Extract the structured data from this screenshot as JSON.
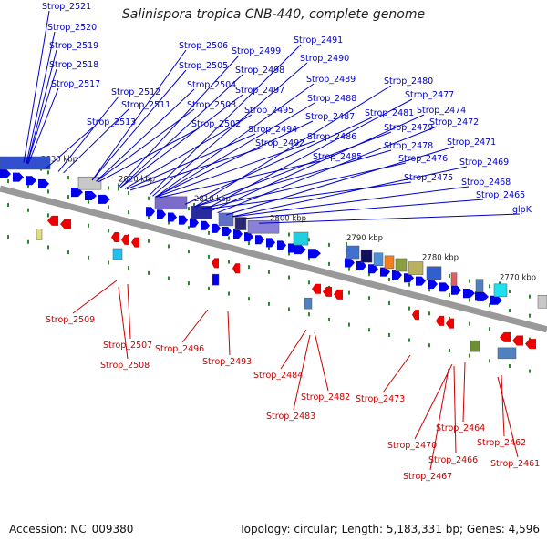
{
  "title": "Salinispora tropica CNB-440, complete genome",
  "footer": {
    "accession": "Accession: NC_009380",
    "topology": "Topology: circular; Length: 5,183,331 bp; Genes: 4,596"
  },
  "colors": {
    "forward_label": "#0000cc",
    "reverse_label": "#cc0000",
    "forward_feature": "#0000ee",
    "reverse_feature": "#ee0000",
    "backbone": "#999999",
    "tick": "#2a8a2a"
  },
  "ticks": [
    "2830 kbp",
    "2820 kbp",
    "2810 kbp",
    "2800 kbp",
    "2790 kbp",
    "2780 kbp",
    "2770 kbp"
  ],
  "forward_labels": [
    "Strop_2521",
    "Strop_2520",
    "Strop_2519",
    "Strop_2518",
    "Strop_2517",
    "Strop_2513",
    "Strop_2512",
    "Strop_2511",
    "Strop_2506",
    "Strop_2505",
    "Strop_2504",
    "Strop_2503",
    "Strop_2502",
    "Strop_2499",
    "Strop_2498",
    "Strop_2497",
    "Strop_2495",
    "Strop_2494",
    "Strop_2492",
    "Strop_2491",
    "Strop_2490",
    "Strop_2489",
    "Strop_2488",
    "Strop_2487",
    "Strop_2486",
    "Strop_2485",
    "Strop_2480",
    "Strop_2481",
    "Strop_2479",
    "Strop_2478",
    "Strop_2476",
    "Strop_2475",
    "Strop_2477",
    "Strop_2474",
    "Strop_2472",
    "Strop_2471",
    "Strop_2469",
    "Strop_2468",
    "Strop_2465",
    "glpK"
  ],
  "reverse_labels": [
    "Strop_2509",
    "Strop_2507",
    "Strop_2508",
    "Strop_2496",
    "Strop_2493",
    "Strop_2484",
    "Strop_2482",
    "Strop_2483",
    "Strop_2473",
    "Strop_2464",
    "Strop_2470",
    "Strop_2466",
    "Strop_2467",
    "Strop_2462",
    "Strop_2461"
  ]
}
